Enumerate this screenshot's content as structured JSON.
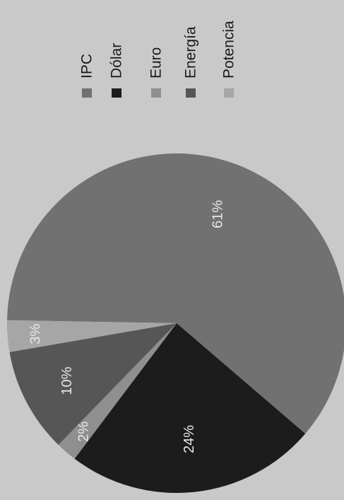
{
  "chart_data": {
    "type": "pie",
    "categories": [
      "IPC",
      "Dólar",
      "Euro",
      "Energía",
      "Potencia"
    ],
    "values": [
      61,
      24,
      2,
      10,
      3
    ],
    "labels": [
      "61%",
      "24%",
      "2%",
      "10%",
      "3%"
    ],
    "colors": [
      "#717171",
      "#1c1c1c",
      "#8f8f8f",
      "#565656",
      "#a6a6a6"
    ],
    "legend_position": "top-right",
    "orientation": "rotated 90° counter-clockwise"
  }
}
